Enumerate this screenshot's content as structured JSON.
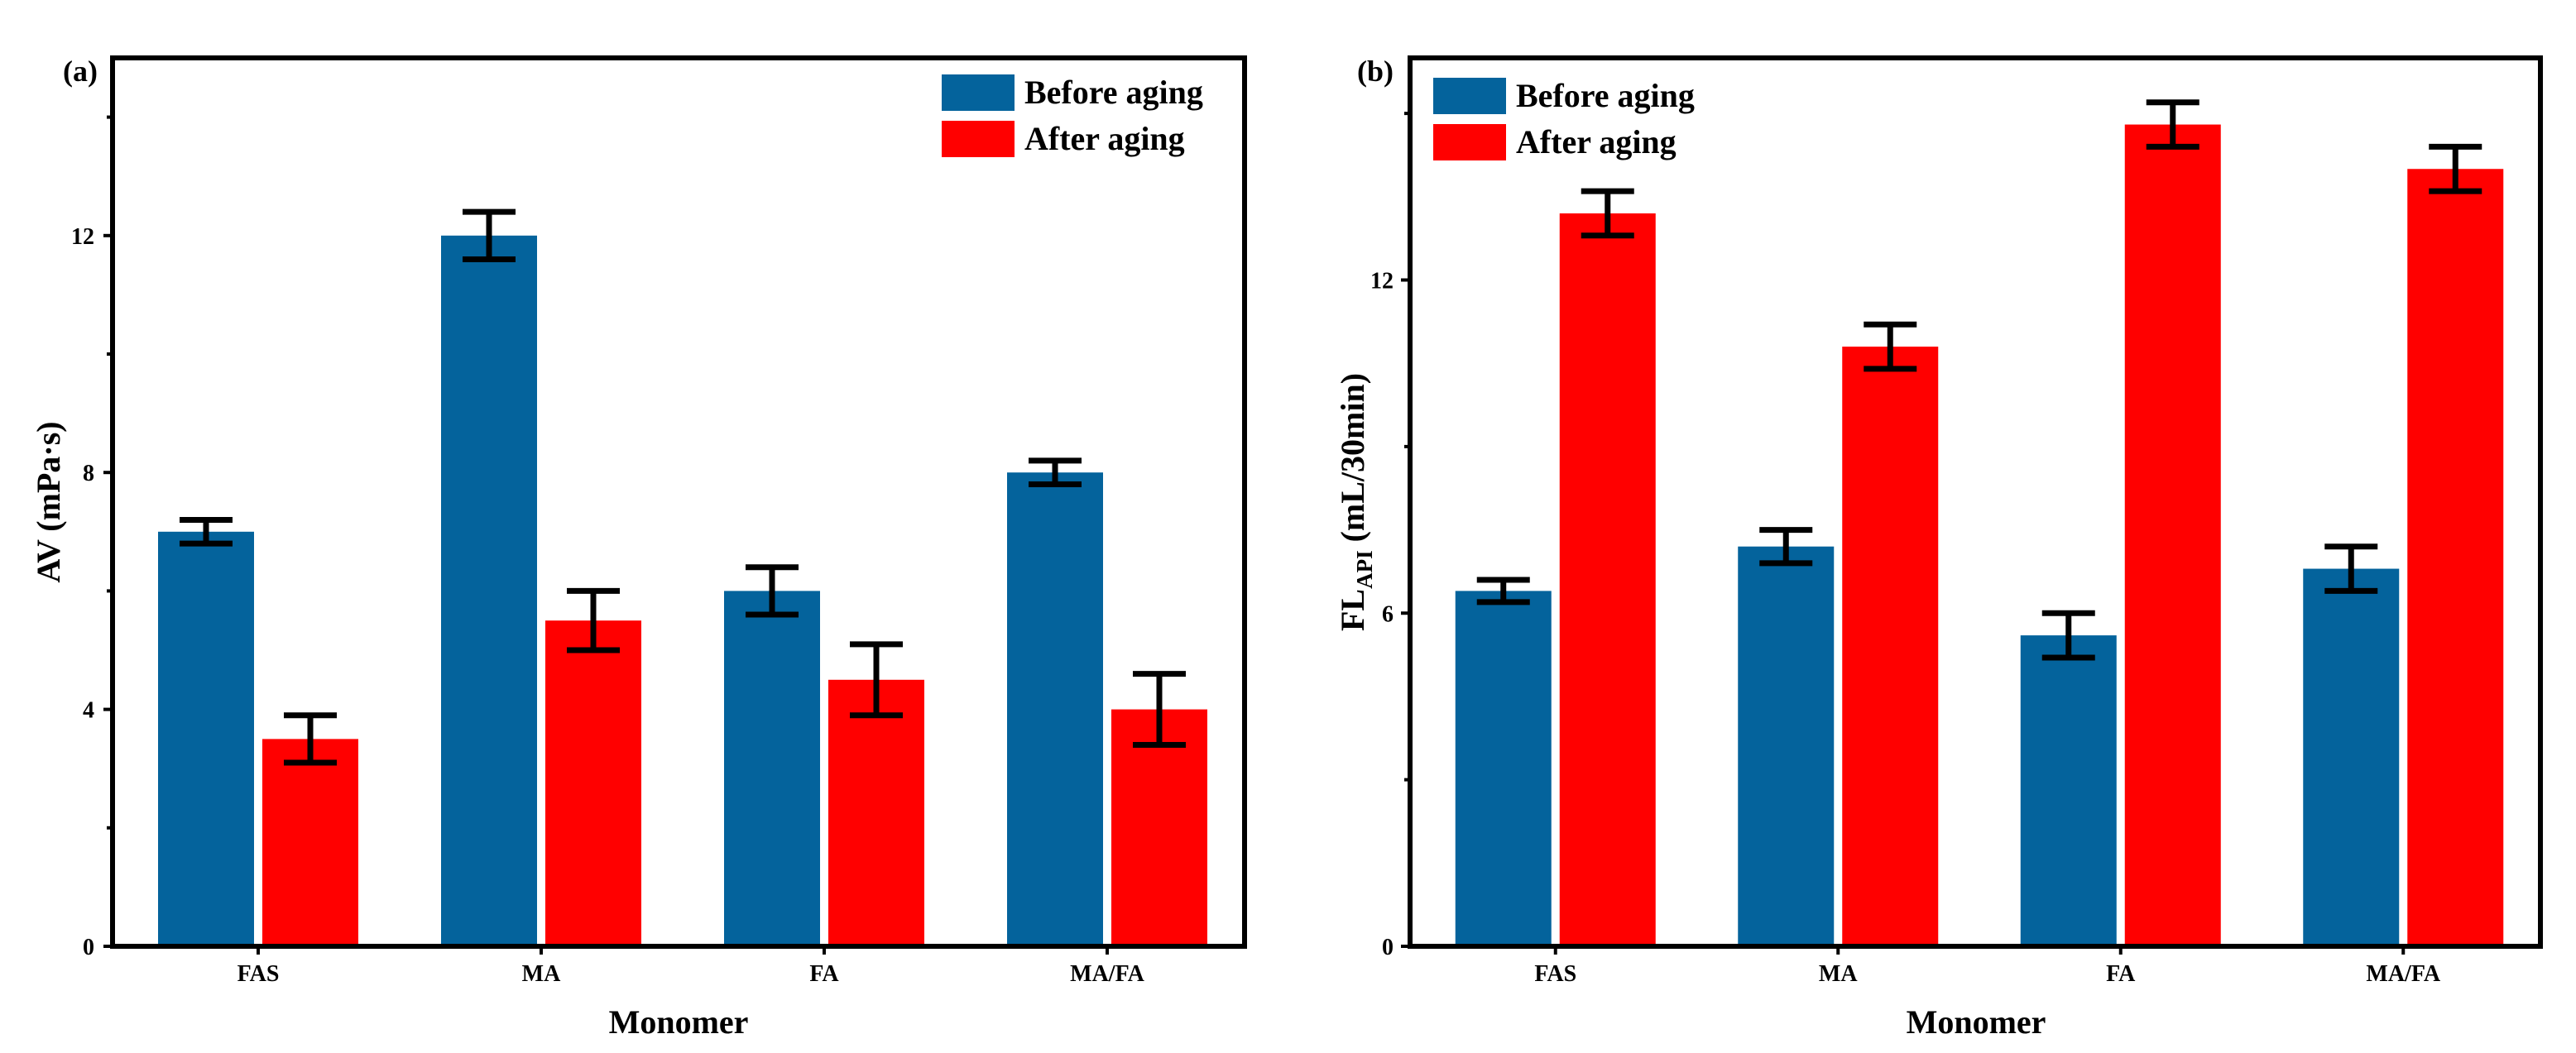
{
  "chart_data": [
    {
      "panel": "(a)",
      "type": "bar",
      "categories": [
        "FAS",
        "MA",
        "FA",
        "MA/FA"
      ],
      "series": [
        {
          "name": "Before aging",
          "color": "#04639C",
          "values": [
            7.0,
            12.0,
            6.0,
            8.0
          ],
          "errors": [
            0.2,
            0.4,
            0.4,
            0.2
          ]
        },
        {
          "name": "After aging",
          "color": "#FF0000",
          "values": [
            3.5,
            5.5,
            4.5,
            4.0
          ],
          "errors": [
            0.4,
            0.5,
            0.6,
            0.6
          ]
        }
      ],
      "xlabel": "Monomer",
      "ylabel": "AV (mPa·s)",
      "ylim": [
        0,
        15
      ],
      "yticks": [
        0,
        4,
        8,
        12
      ],
      "yminor_ticks": [
        2,
        6,
        10,
        14
      ],
      "grid": false
    },
    {
      "panel": "(b)",
      "type": "bar",
      "categories": [
        "FAS",
        "MA",
        "FA",
        "MA/FA"
      ],
      "series": [
        {
          "name": "Before aging",
          "color": "#04639C",
          "values": [
            6.4,
            7.2,
            5.6,
            6.8
          ],
          "errors": [
            0.2,
            0.3,
            0.4,
            0.4
          ]
        },
        {
          "name": "After aging",
          "color": "#FF0000",
          "values": [
            13.2,
            10.8,
            14.8,
            14.0
          ],
          "errors": [
            0.4,
            0.4,
            0.4,
            0.4
          ]
        }
      ],
      "xlabel": "Monomer",
      "ylabel": {
        "main": "FL",
        "sub": "API",
        "rest": "(mL/30min)"
      },
      "ylim": [
        0,
        16
      ],
      "yticks": [
        0,
        6,
        12
      ],
      "yminor_ticks": [
        3,
        9,
        15
      ],
      "grid": false
    }
  ]
}
